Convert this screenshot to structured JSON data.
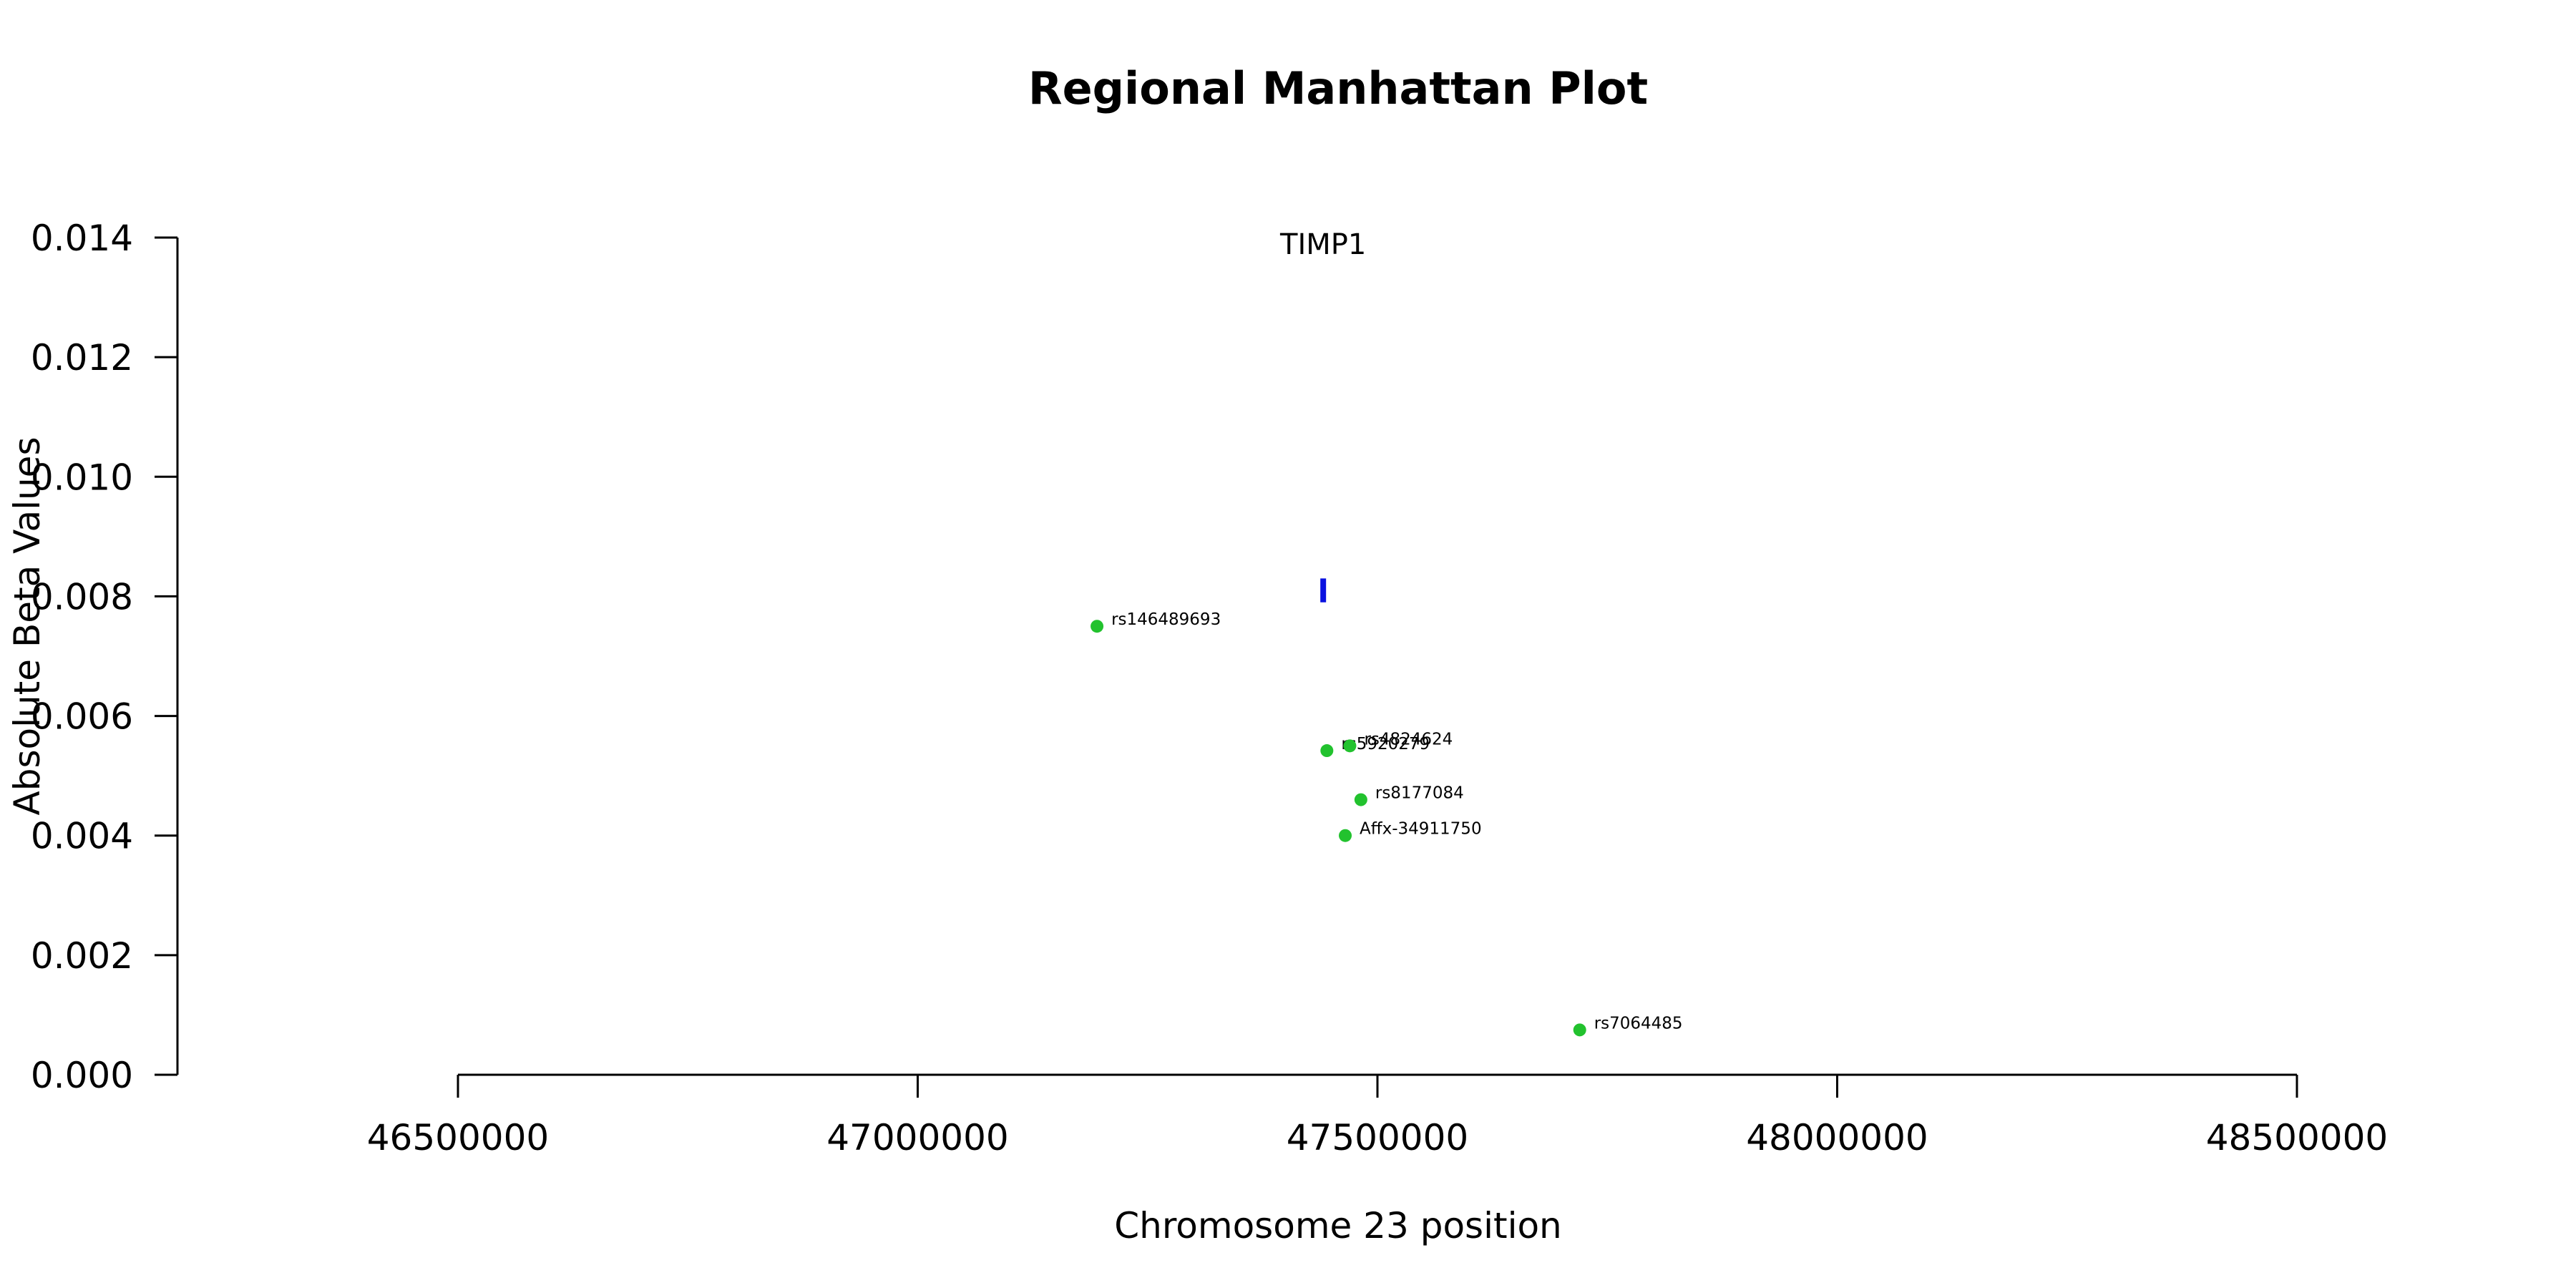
{
  "chart_data": {
    "type": "scatter",
    "title": "Regional Manhattan Plot",
    "xlabel": "Chromosome 23 position",
    "ylabel": "Absolute Beta Values",
    "xlim": [
      46500000,
      48500000
    ],
    "ylim": [
      0,
      0.014
    ],
    "x_ticks": [
      46500000,
      47000000,
      47500000,
      48000000,
      48500000
    ],
    "x_tick_labels": [
      "46500000",
      "47000000",
      "47500000",
      "48000000",
      "48500000"
    ],
    "y_ticks": [
      0,
      0.002,
      0.004,
      0.006,
      0.008,
      0.01,
      0.012,
      0.014
    ],
    "y_tick_labels": [
      "0.000",
      "0.002",
      "0.004",
      "0.006",
      "0.008",
      "0.010",
      "0.012",
      "0.014"
    ],
    "grid": false,
    "point_color": "#22c22e",
    "gene_color": "#0a12e0",
    "gene": {
      "label": "TIMP1",
      "position": 47441000,
      "y_min": 0.0079,
      "y_max": 0.0083
    },
    "points": [
      {
        "label": "rs146489693",
        "x": 47195000,
        "y": 0.0075
      },
      {
        "label": "rs5920279",
        "x": 47445000,
        "y": 0.00542
      },
      {
        "label": "rs4824624",
        "x": 47470000,
        "y": 0.0055
      },
      {
        "label": "rs8177084",
        "x": 47482000,
        "y": 0.0046
      },
      {
        "label": "Affx-34911750",
        "x": 47465000,
        "y": 0.004
      },
      {
        "label": "rs7064485",
        "x": 47720000,
        "y": 0.00075
      }
    ]
  }
}
